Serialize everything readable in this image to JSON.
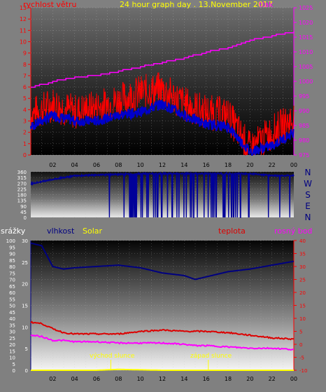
{
  "header": {
    "wind_label": "rychlost větru",
    "graph_title": "24 hour graph day . 13.November 2017",
    "pressure_label": "tlak"
  },
  "colors": {
    "background": "#808080",
    "wind_gust": "#ff0000",
    "wind_avg": "#0000cc",
    "pressure": "#ff00ff",
    "direction": "#000099",
    "humidity": "#000080",
    "temperature": "#dd0000",
    "dew_point": "#ff00ff",
    "solar": "#ffff00",
    "rain": "#0000ff",
    "grid": "#c0c0c0"
  },
  "x_ticks": [
    "02",
    "04",
    "06",
    "08",
    "10",
    "12",
    "14",
    "16",
    "18",
    "20",
    "22",
    "00"
  ],
  "panels": {
    "direction": {
      "compass": [
        "N",
        "W",
        "S",
        "E",
        "N"
      ]
    },
    "lower": {
      "rain_label": "srážky",
      "humidity_label": "vlhkost",
      "solar_label": "Solar",
      "temp_label": "teplota",
      "dew_label": "rosný bod",
      "sunrise_label": "východ slunce",
      "sunset_label": "západ slunce"
    }
  },
  "chart_data": [
    {
      "type": "line",
      "title": "24 hour graph day . 13.November 2017",
      "xlabel": "",
      "x": [
        0,
        2,
        4,
        6,
        8,
        10,
        12,
        14,
        16,
        18,
        20,
        22,
        24
      ],
      "left_axis": {
        "label": "rychlost větru",
        "ylim": [
          0,
          13
        ],
        "ticks": [
          0,
          1,
          2,
          3,
          4,
          5,
          6,
          7,
          8,
          9,
          10,
          11,
          12,
          13
        ]
      },
      "right_axis": {
        "label": "tlak",
        "ylim": [
          975,
          1025
        ],
        "ticks": [
          975,
          980,
          985,
          990,
          995,
          1000,
          1005,
          1010,
          1015,
          1020,
          1025
        ]
      },
      "series": [
        {
          "name": "rychlost větru",
          "axis": "left",
          "color": "#ff0000",
          "values": [
            3.5,
            4.5,
            3.8,
            4.2,
            4.8,
            5.5,
            5.8,
            4.5,
            3.8,
            3.5,
            0.5,
            2.0,
            3.2
          ]
        },
        {
          "name": "",
          "axis": "left",
          "color": "#0000cc",
          "values": [
            2.5,
            3.5,
            3.0,
            3.0,
            3.5,
            3.8,
            4.5,
            3.5,
            2.7,
            2.5,
            0.3,
            0.8,
            2.0
          ]
        },
        {
          "name": "tlak",
          "axis": "right",
          "color": "#ff00ff",
          "values": [
            998.0,
            1000.0,
            1001.5,
            1002.0,
            1003.5,
            1005.0,
            1006.5,
            1008.0,
            1010.0,
            1011.5,
            1014.0,
            1015.5,
            1017.0
          ]
        }
      ],
      "grid": true
    },
    {
      "type": "line",
      "title": "",
      "x": [
        0,
        2,
        4,
        6,
        8,
        10,
        12,
        14,
        16,
        18,
        20,
        22,
        24
      ],
      "ylim": [
        0,
        360
      ],
      "yticks": [
        0,
        45,
        90,
        135,
        180,
        225,
        270,
        315,
        360
      ],
      "series": [
        {
          "name": "",
          "color": "#000099",
          "values": [
            265,
            300,
            330,
            335,
            340,
            345,
            345,
            345,
            345,
            345,
            345,
            330,
            330
          ]
        }
      ],
      "grid": true
    },
    {
      "type": "line",
      "title": "",
      "x": [
        0,
        1,
        2,
        3,
        4,
        6,
        8,
        10,
        12,
        14,
        15,
        16,
        18,
        20,
        22,
        24
      ],
      "left_axis_rain": {
        "label": "srážky",
        "ylim": [
          0,
          100
        ],
        "ticks": [
          0,
          5,
          10,
          15,
          20,
          25,
          30,
          35,
          40,
          45,
          50,
          55,
          60,
          65,
          70,
          75,
          80,
          85,
          90,
          95,
          100
        ]
      },
      "left_axis_humidity": {
        "label": "vlhkost",
        "ylim": [
          0,
          30
        ],
        "ticks": [
          0,
          5,
          10,
          15,
          20,
          25,
          30
        ]
      },
      "right_axis": {
        "label": "teplota",
        "ylim": [
          -10,
          40
        ],
        "ticks": [
          -10,
          -5,
          0,
          5,
          10,
          15,
          20,
          25,
          30,
          35,
          40
        ]
      },
      "series": [
        {
          "name": "vlhkost",
          "axis": "rain",
          "color": "#000080",
          "values": [
            98,
            96,
            80,
            78,
            79,
            80,
            81,
            79,
            75,
            73,
            70,
            72,
            76,
            78,
            81,
            84
          ]
        },
        {
          "name": "teplota",
          "axis": "right",
          "color": "#dd0000",
          "values": [
            8.5,
            8.0,
            6.0,
            4.5,
            4.0,
            4.0,
            4.0,
            5.0,
            5.5,
            5.0,
            5.0,
            5.0,
            4.5,
            3.5,
            2.5,
            2.0
          ]
        },
        {
          "name": "rosný bod",
          "axis": "right",
          "color": "#ff00ff",
          "values": [
            3.5,
            3.0,
            1.5,
            1.5,
            1.0,
            1.0,
            0.5,
            0.5,
            0.5,
            0.0,
            -0.5,
            -0.5,
            -1.0,
            -1.5,
            -1.5,
            -2.0
          ]
        },
        {
          "name": "Solar",
          "axis": "humidity",
          "color": "#ffff00",
          "values": [
            0,
            0,
            0,
            0,
            0,
            0,
            0.2,
            0.1,
            0,
            0,
            0,
            0,
            0,
            0,
            0,
            0
          ]
        }
      ],
      "annotations": [
        {
          "label": "východ slunce",
          "x": 7.3
        },
        {
          "label": "západ slunce",
          "x": 16.2
        }
      ],
      "grid": true
    }
  ]
}
